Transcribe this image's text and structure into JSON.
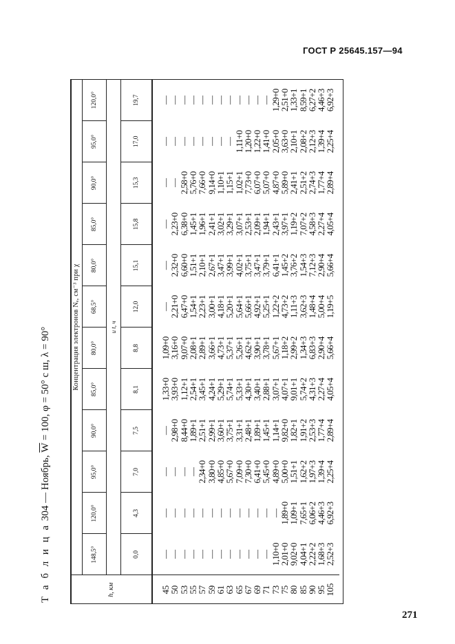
{
  "header": {
    "standard": "ГОСТ Р 25645.157—94",
    "page_number": "271"
  },
  "title": {
    "label": "Т а б л и ц а",
    "number": "304",
    "month": "— Ноябрь,",
    "w_symbol": "W",
    "params": "= 100, φ = 50° с ш, λ = 90°"
  },
  "table": {
    "h_label": "h, км",
    "conc_label": "Концентрация электронов Nₑ, см⁻³ при χ",
    "t_label": "и t, ч",
    "h": [
      "45",
      "50",
      "53",
      "55",
      "57",
      "59",
      "61",
      "63",
      "65",
      "67",
      "69",
      "71",
      "73",
      "75",
      "80",
      "85",
      "90",
      "95",
      "105"
    ],
    "columns": [
      {
        "chi": "148,5°",
        "t": "0,0",
        "values": [
          "—",
          "—",
          "—",
          "—",
          "—",
          "—",
          "—",
          "—",
          "—",
          "—",
          "—",
          "—",
          "1,10+0",
          "2,01+0",
          "9,02+0",
          "4,04+1",
          "2,22+2",
          "1,68+3",
          "2,52+3"
        ]
      },
      {
        "chi": "120,0°",
        "t": "4,3",
        "values": [
          "—",
          "—",
          "—",
          "—",
          "—",
          "—",
          "—",
          "—",
          "—",
          "—",
          "—",
          "—",
          "—",
          "1,89+0",
          "1,09+1",
          "7,65+1",
          "6,06+2",
          "4,46+3",
          "6,92+3"
        ]
      },
      {
        "chi": "95,0°",
        "t": "7,0",
        "values": [
          "—",
          "—",
          "—",
          "—",
          "2,34+0",
          "3,80+0",
          "4,85+0",
          "5,67+0",
          "7,09+0",
          "7,30+0",
          "6,41+0",
          "5,45+0",
          "4,89+0",
          "5,00+0",
          "1,51+1",
          "1,62+2",
          "1,97+3",
          "1,39+4",
          "2,25+4"
        ]
      },
      {
        "chi": "90,0°",
        "t": "7,5",
        "values": [
          "—",
          "2,98+0",
          "8,44+0",
          "1,89+1",
          "2,51+1",
          "2,99+1",
          "3,60+1",
          "3,75+1",
          "3,31+1",
          "2,48+1",
          "1,89+1",
          "1,45+1",
          "1,14+1",
          "9,82+0",
          "1,82+1",
          "1,91+2",
          "2,53+3",
          "1,77+4",
          "2,89+4"
        ]
      },
      {
        "chi": "85,0°",
        "t": "8,1",
        "values": [
          "1,33+0",
          "3,93+0",
          "1,12+1",
          "2,54+1",
          "3,45+1",
          "4,24+1",
          "5,29+1",
          "5,74+1",
          "5,33+1",
          "4,30+1",
          "3,40+1",
          "2,88+1",
          "3,07+1",
          "4,07+1",
          "9,01+1",
          "5,74+2",
          "4,31+3",
          "2,27+4",
          "4,05+4"
        ]
      },
      {
        "chi": "80,0°",
        "t": "8,8",
        "values": [
          "1,09+0",
          "3,16+0",
          "9,07+0",
          "2,08+1",
          "2,89+1",
          "3,66+1",
          "4,73+1",
          "5,37+1",
          "5,26+1",
          "4,62+1",
          "3,90+1",
          "3,78+1",
          "5,67+1",
          "1,18+2",
          "2,99+2",
          "1,34+3",
          "6,83+3",
          "2,90+4",
          "5,66+4"
        ]
      },
      {
        "chi": "68,5°",
        "t": "12,0",
        "values": [
          "—",
          "2,21+0",
          "6,47+0",
          "1,54+1",
          "2,23+1",
          "3,00+1",
          "4,18+1",
          "5,20+1",
          "5,64+1",
          "5,66+1",
          "4,92+1",
          "5,25+1",
          "1,22+2",
          "4,73+2",
          "1,11+3",
          "3,62+3",
          "1,48+4",
          "5,00+4",
          "1,19+5"
        ]
      },
      {
        "chi": "80,0°",
        "t": "15,1",
        "values": [
          "—",
          "2,32+0",
          "6,60+0",
          "1,51+1",
          "2,10+1",
          "2,67+1",
          "3,47+1",
          "3,99+1",
          "4,02+1",
          "3,75+1",
          "3,47+1",
          "3,79+1",
          "6,41+1",
          "1,45+2",
          "3,76+2",
          "1,54+3",
          "7,12+3",
          "2,90+4",
          "5,66+4"
        ]
      },
      {
        "chi": "85,0°",
        "t": "15,8",
        "values": [
          "—",
          "2,23+0",
          "6,38+0",
          "1,45+1",
          "1,96+1",
          "2,41+1",
          "3,02+1",
          "3,29+1",
          "3,07+1",
          "2,53+1",
          "2,09+1",
          "1,94+1",
          "2,43+1",
          "3,97+1",
          "1,19+2",
          "7,07+2",
          "4,58+3",
          "2,27+4",
          "4,05+4"
        ]
      },
      {
        "chi": "90,0°",
        "t": "15,3",
        "values": [
          "—",
          "—",
          "2,58+0",
          "5,76+0",
          "7,66+0",
          "9,14+0",
          "1,10+1",
          "1,15+1",
          "1,02+1",
          "7,73+0",
          "6,07+0",
          "5,07+0",
          "4,87+0",
          "5,89+0",
          "2,41+1",
          "2,51+2",
          "2,74+3",
          "1,77+4",
          "2,89+4"
        ]
      },
      {
        "chi": "95,0°",
        "t": "17,0",
        "values": [
          "—",
          "—",
          "—",
          "—",
          "—",
          "—",
          "—",
          "—",
          "1,11+0",
          "1,20+0",
          "1,22+0",
          "1,41+0",
          "2,05+0",
          "3,63+0",
          "2,10+1",
          "2,08+2",
          "2,12+3",
          "1,39+4",
          "2,25+4"
        ]
      },
      {
        "chi": "120,0°",
        "t": "19,7",
        "values": [
          "—",
          "—",
          "—",
          "—",
          "—",
          "—",
          "—",
          "—",
          "—",
          "—",
          "—",
          "—",
          "1,29+0",
          "2,51+0",
          "1,33+1",
          "8,59+1",
          "6,27+2",
          "4,46+3",
          "6,92+3"
        ]
      }
    ]
  }
}
